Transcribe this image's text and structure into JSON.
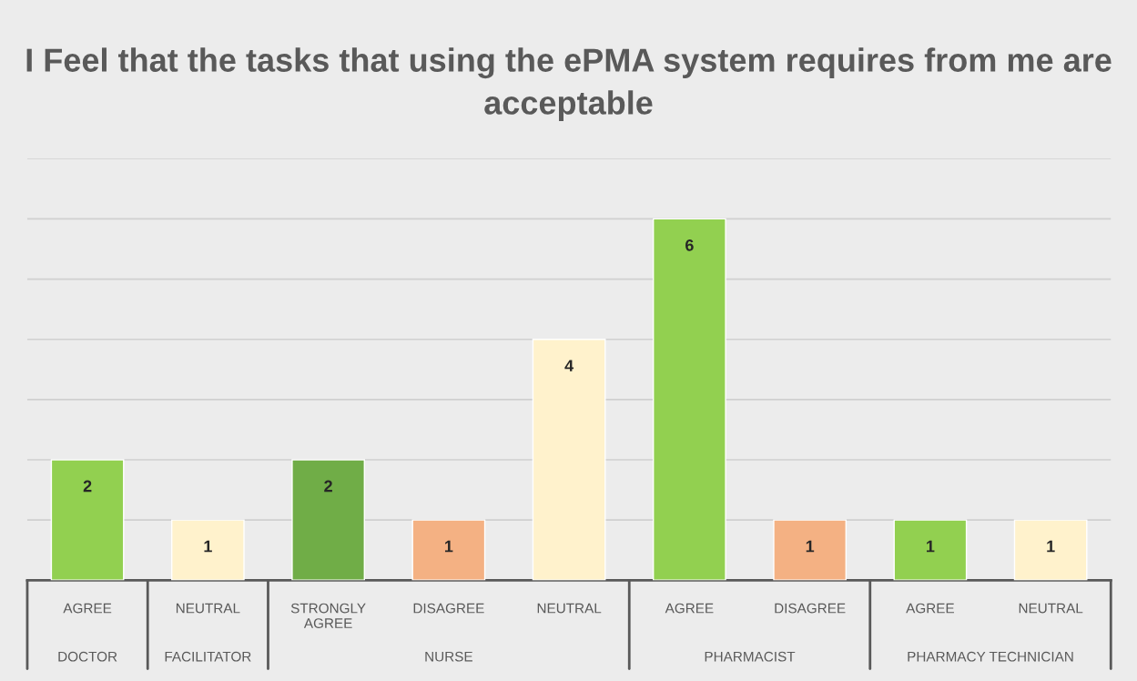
{
  "chart_data": {
    "type": "bar",
    "title": "I Feel that the tasks that using the ePMA system requires from me are acceptable",
    "categories": [
      "AGREE",
      "NEUTRAL",
      "STRONGLY AGREE",
      "DISAGREE",
      "NEUTRAL",
      "AGREE",
      "DISAGREE",
      "AGREE",
      "NEUTRAL"
    ],
    "values": [
      2,
      1,
      2,
      1,
      4,
      6,
      1,
      1,
      1
    ],
    "colors": [
      "#92d050",
      "#fff2cc",
      "#70ad47",
      "#f4b183",
      "#fff2cc",
      "#92d050",
      "#f4b183",
      "#92d050",
      "#fff2cc"
    ],
    "data_labels": true,
    "ylim": [
      0,
      7
    ],
    "yticks": [
      {
        "value": 1,
        "label": null
      },
      {
        "value": 2,
        "label": null
      },
      {
        "value": 3,
        "label": null
      },
      {
        "value": 4,
        "label": null
      },
      {
        "value": 5,
        "label": null
      },
      {
        "value": 6,
        "label": null
      },
      {
        "value": 7,
        "label": null
      }
    ],
    "grid": "y",
    "tick_labels": "x",
    "annotations": [
      "DOCTOR",
      "FACILITATOR",
      "NURSE",
      "PHARMACIST",
      "PHARMACY TECHNICIAN"
    ]
  }
}
